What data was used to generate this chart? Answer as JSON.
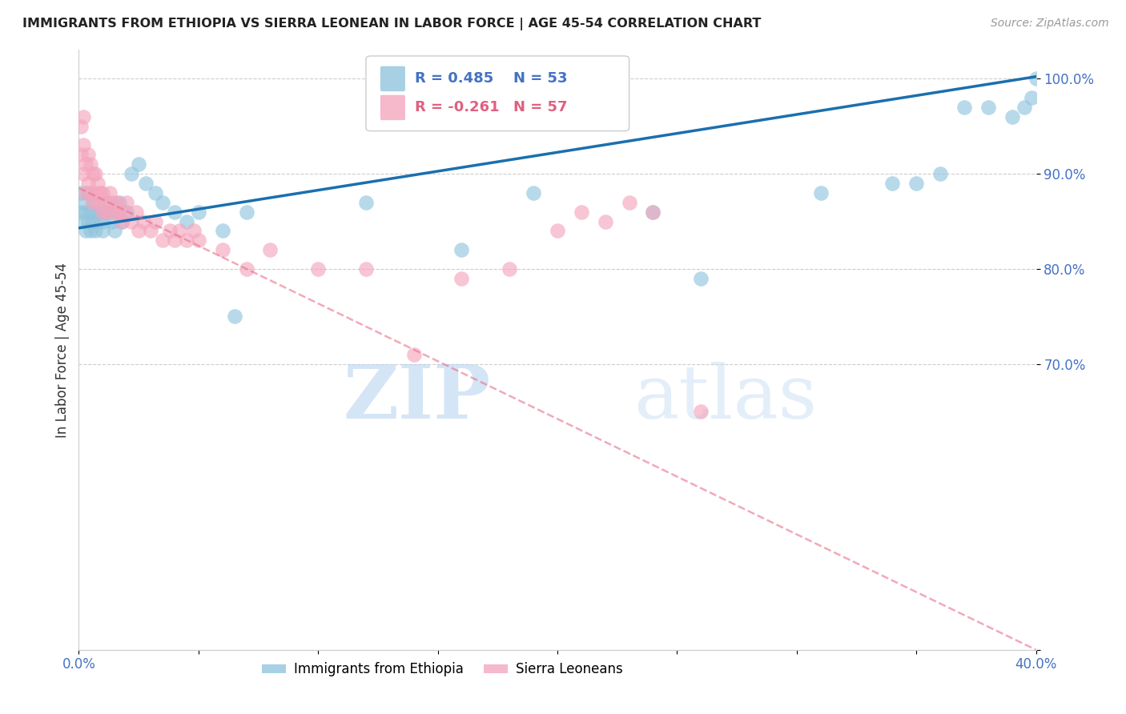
{
  "title": "IMMIGRANTS FROM ETHIOPIA VS SIERRA LEONEAN IN LABOR FORCE | AGE 45-54 CORRELATION CHART",
  "source": "Source: ZipAtlas.com",
  "ylabel": "In Labor Force | Age 45-54",
  "legend_blue_r": "0.485",
  "legend_blue_n": "53",
  "legend_pink_r": "-0.261",
  "legend_pink_n": "57",
  "legend_blue_label": "Immigrants from Ethiopia",
  "legend_pink_label": "Sierra Leoneans",
  "blue_color": "#92c5de",
  "pink_color": "#f4a6be",
  "trend_blue_color": "#1a6faf",
  "trend_pink_color": "#e8708a",
  "watermark_zip": "ZIP",
  "watermark_atlas": "atlas",
  "xlim": [
    0.0,
    0.4
  ],
  "ylim": [
    0.4,
    1.03
  ],
  "ytick_vals": [
    0.4,
    0.7,
    0.8,
    0.9,
    1.0
  ],
  "ytick_labels": [
    "",
    "70.0%",
    "80.0%",
    "90.0%",
    "100.0%"
  ],
  "xtick_vals": [
    0.0,
    0.05,
    0.1,
    0.15,
    0.2,
    0.25,
    0.3,
    0.35,
    0.4
  ],
  "xtick_labels": [
    "0.0%",
    "",
    "",
    "",
    "",
    "",
    "",
    "",
    "40.0%"
  ],
  "blue_x": [
    0.001,
    0.001,
    0.002,
    0.002,
    0.003,
    0.003,
    0.004,
    0.004,
    0.005,
    0.005,
    0.006,
    0.006,
    0.007,
    0.007,
    0.008,
    0.009,
    0.01,
    0.01,
    0.011,
    0.012,
    0.013,
    0.014,
    0.015,
    0.016,
    0.017,
    0.018,
    0.02,
    0.022,
    0.025,
    0.028,
    0.032,
    0.035,
    0.04,
    0.045,
    0.05,
    0.06,
    0.065,
    0.07,
    0.12,
    0.16,
    0.19,
    0.24,
    0.26,
    0.31,
    0.34,
    0.35,
    0.36,
    0.37,
    0.38,
    0.39,
    0.395,
    0.398,
    0.4
  ],
  "blue_y": [
    0.86,
    0.88,
    0.85,
    0.87,
    0.84,
    0.86,
    0.85,
    0.88,
    0.84,
    0.86,
    0.85,
    0.87,
    0.84,
    0.86,
    0.85,
    0.86,
    0.85,
    0.84,
    0.86,
    0.87,
    0.86,
    0.85,
    0.84,
    0.86,
    0.87,
    0.85,
    0.86,
    0.9,
    0.91,
    0.89,
    0.88,
    0.87,
    0.86,
    0.85,
    0.86,
    0.84,
    0.75,
    0.86,
    0.87,
    0.82,
    0.88,
    0.86,
    0.79,
    0.88,
    0.89,
    0.89,
    0.9,
    0.97,
    0.97,
    0.96,
    0.97,
    0.98,
    1.0
  ],
  "pink_x": [
    0.001,
    0.001,
    0.002,
    0.002,
    0.002,
    0.003,
    0.003,
    0.004,
    0.004,
    0.005,
    0.005,
    0.006,
    0.006,
    0.007,
    0.007,
    0.008,
    0.008,
    0.009,
    0.01,
    0.01,
    0.011,
    0.012,
    0.013,
    0.014,
    0.015,
    0.016,
    0.017,
    0.018,
    0.019,
    0.02,
    0.022,
    0.024,
    0.025,
    0.027,
    0.03,
    0.032,
    0.035,
    0.038,
    0.04,
    0.042,
    0.045,
    0.048,
    0.05,
    0.06,
    0.07,
    0.08,
    0.1,
    0.12,
    0.14,
    0.16,
    0.18,
    0.2,
    0.21,
    0.22,
    0.23,
    0.24,
    0.26
  ],
  "pink_y": [
    0.92,
    0.95,
    0.9,
    0.93,
    0.96,
    0.88,
    0.91,
    0.89,
    0.92,
    0.88,
    0.91,
    0.87,
    0.9,
    0.88,
    0.9,
    0.87,
    0.89,
    0.88,
    0.86,
    0.88,
    0.87,
    0.86,
    0.88,
    0.87,
    0.86,
    0.87,
    0.86,
    0.85,
    0.86,
    0.87,
    0.85,
    0.86,
    0.84,
    0.85,
    0.84,
    0.85,
    0.83,
    0.84,
    0.83,
    0.84,
    0.83,
    0.84,
    0.83,
    0.82,
    0.8,
    0.82,
    0.8,
    0.8,
    0.71,
    0.79,
    0.8,
    0.84,
    0.86,
    0.85,
    0.87,
    0.86,
    0.65
  ],
  "blue_trend_x": [
    0.0,
    0.4
  ],
  "blue_trend_y": [
    0.843,
    1.002
  ],
  "pink_trend_x": [
    0.0,
    0.4
  ],
  "pink_trend_y": [
    0.885,
    0.4
  ]
}
